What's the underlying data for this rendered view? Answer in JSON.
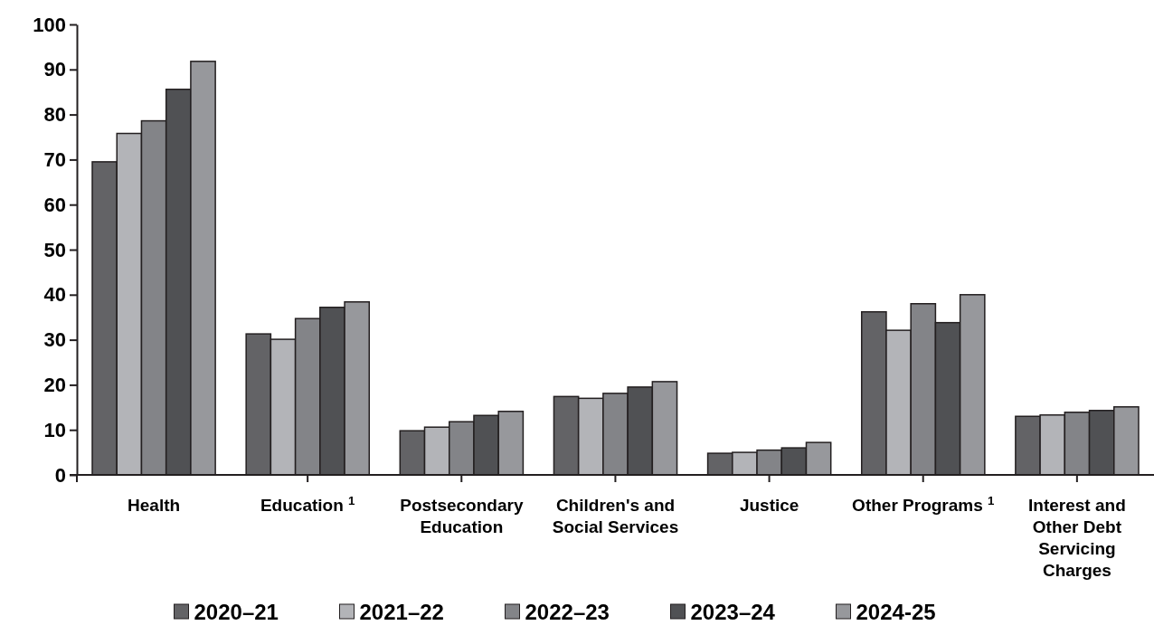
{
  "chart_data": {
    "type": "bar",
    "categories": [
      "Health",
      "Education $^{1}$",
      "Postsecondary Education",
      "Children's and Social Services",
      "Justice",
      "Other Programs $^{1}$",
      "Interest and Other Debt Servicing Charges"
    ],
    "series": [
      {
        "name": "2020–21",
        "color": "#636366",
        "values": [
          69.5,
          31.3,
          9.8,
          17.4,
          4.8,
          36.2,
          13.0
        ]
      },
      {
        "name": "2021–22",
        "color": "#b3b4b8",
        "values": [
          75.8,
          30.1,
          10.6,
          17.0,
          5.0,
          32.1,
          13.3
        ]
      },
      {
        "name": "2022–23",
        "color": "#838488",
        "values": [
          78.6,
          34.7,
          11.8,
          18.1,
          5.5,
          38.0,
          13.9
        ]
      },
      {
        "name": "2023–24",
        "color": "#505154",
        "values": [
          85.6,
          37.2,
          13.2,
          19.5,
          6.0,
          33.8,
          14.3
        ]
      },
      {
        "name": "2024-25",
        "color": "#97989c",
        "values": [
          91.8,
          38.4,
          14.1,
          20.7,
          7.2,
          40.0,
          15.1
        ]
      }
    ],
    "ylim": [
      0,
      100
    ],
    "yticks": [
      0,
      10,
      20,
      30,
      40,
      50,
      60,
      70,
      80,
      90,
      100
    ],
    "legend": "bottom"
  }
}
